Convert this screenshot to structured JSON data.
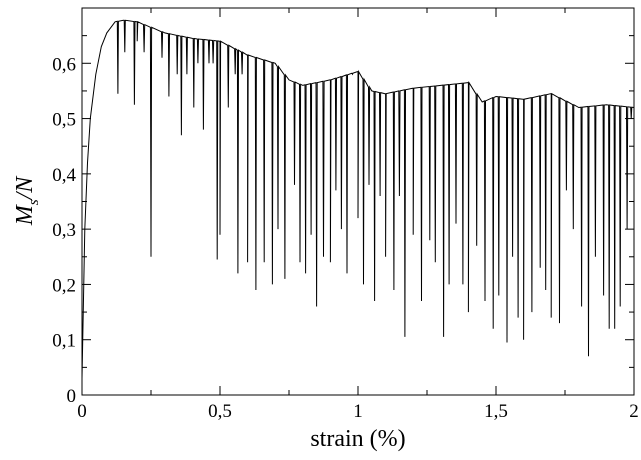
{
  "chart_data": {
    "type": "line",
    "title": "",
    "xlabel": "strain (%)",
    "ylabel": "M",
    "ylabel_subscript": "s",
    "ylabel_suffix": "/N",
    "xlim": [
      0,
      2
    ],
    "ylim": [
      0,
      0.7
    ],
    "grid": false,
    "legend": "none",
    "line_color": "#000000",
    "x_ticks": [
      {
        "value": 0,
        "label": "0"
      },
      {
        "value": 0.5,
        "label": "0,5"
      },
      {
        "value": 1,
        "label": "1"
      },
      {
        "value": 1.5,
        "label": "1,5"
      },
      {
        "value": 2,
        "label": "2"
      }
    ],
    "y_ticks": [
      {
        "value": 0,
        "label": "0"
      },
      {
        "value": 0.1,
        "label": "0,1"
      },
      {
        "value": 0.2,
        "label": "0,2"
      },
      {
        "value": 0.3,
        "label": "0,3"
      },
      {
        "value": 0.4,
        "label": "0,4"
      },
      {
        "value": 0.5,
        "label": "0,5"
      },
      {
        "value": 0.6,
        "label": "0,6"
      }
    ],
    "series": [
      {
        "baseline": [
          [
            0,
            0.03
          ],
          [
            0.01,
            0.3
          ],
          [
            0.02,
            0.42
          ],
          [
            0.03,
            0.5
          ],
          [
            0.05,
            0.58
          ],
          [
            0.07,
            0.63
          ],
          [
            0.09,
            0.655
          ],
          [
            0.12,
            0.675
          ],
          [
            0.15,
            0.678
          ],
          [
            0.2,
            0.675
          ],
          [
            0.3,
            0.655
          ],
          [
            0.4,
            0.645
          ],
          [
            0.5,
            0.64
          ],
          [
            0.6,
            0.615
          ],
          [
            0.7,
            0.6
          ],
          [
            0.75,
            0.57
          ],
          [
            0.8,
            0.56
          ],
          [
            0.9,
            0.57
          ],
          [
            1.0,
            0.585
          ],
          [
            1.05,
            0.55
          ],
          [
            1.1,
            0.545
          ],
          [
            1.2,
            0.555
          ],
          [
            1.3,
            0.56
          ],
          [
            1.4,
            0.565
          ],
          [
            1.45,
            0.53
          ],
          [
            1.5,
            0.54
          ],
          [
            1.6,
            0.535
          ],
          [
            1.7,
            0.545
          ],
          [
            1.8,
            0.52
          ],
          [
            1.9,
            0.525
          ],
          [
            2.0,
            0.52
          ]
        ],
        "drops": [
          [
            0.13,
            0.545
          ],
          [
            0.155,
            0.62
          ],
          [
            0.19,
            0.525
          ],
          [
            0.2,
            0.64
          ],
          [
            0.225,
            0.62
          ],
          [
            0.25,
            0.25
          ],
          [
            0.29,
            0.61
          ],
          [
            0.315,
            0.54
          ],
          [
            0.345,
            0.58
          ],
          [
            0.36,
            0.47
          ],
          [
            0.38,
            0.58
          ],
          [
            0.405,
            0.52
          ],
          [
            0.42,
            0.6
          ],
          [
            0.44,
            0.48
          ],
          [
            0.46,
            0.6
          ],
          [
            0.475,
            0.6
          ],
          [
            0.49,
            0.245
          ],
          [
            0.5,
            0.29
          ],
          [
            0.53,
            0.52
          ],
          [
            0.555,
            0.58
          ],
          [
            0.565,
            0.22
          ],
          [
            0.58,
            0.58
          ],
          [
            0.6,
            0.24
          ],
          [
            0.63,
            0.19
          ],
          [
            0.66,
            0.24
          ],
          [
            0.69,
            0.2
          ],
          [
            0.71,
            0.3
          ],
          [
            0.735,
            0.21
          ],
          [
            0.77,
            0.38
          ],
          [
            0.79,
            0.24
          ],
          [
            0.81,
            0.22
          ],
          [
            0.83,
            0.29
          ],
          [
            0.85,
            0.16
          ],
          [
            0.875,
            0.25
          ],
          [
            0.9,
            0.24
          ],
          [
            0.92,
            0.37
          ],
          [
            0.94,
            0.3
          ],
          [
            0.96,
            0.22
          ],
          [
            0.98,
            0.58
          ],
          [
            1.0,
            0.32
          ],
          [
            1.02,
            0.2
          ],
          [
            1.04,
            0.38
          ],
          [
            1.06,
            0.17
          ],
          [
            1.08,
            0.36
          ],
          [
            1.1,
            0.25
          ],
          [
            1.13,
            0.19
          ],
          [
            1.15,
            0.36
          ],
          [
            1.17,
            0.105
          ],
          [
            1.2,
            0.29
          ],
          [
            1.23,
            0.17
          ],
          [
            1.26,
            0.28
          ],
          [
            1.28,
            0.24
          ],
          [
            1.31,
            0.105
          ],
          [
            1.33,
            0.2
          ],
          [
            1.355,
            0.31
          ],
          [
            1.38,
            0.2
          ],
          [
            1.4,
            0.15
          ],
          [
            1.43,
            0.27
          ],
          [
            1.46,
            0.17
          ],
          [
            1.49,
            0.12
          ],
          [
            1.51,
            0.18
          ],
          [
            1.54,
            0.095
          ],
          [
            1.56,
            0.25
          ],
          [
            1.58,
            0.14
          ],
          [
            1.6,
            0.1
          ],
          [
            1.63,
            0.15
          ],
          [
            1.66,
            0.23
          ],
          [
            1.68,
            0.19
          ],
          [
            1.7,
            0.14
          ],
          [
            1.73,
            0.13
          ],
          [
            1.755,
            0.37
          ],
          [
            1.78,
            0.3
          ],
          [
            1.81,
            0.16
          ],
          [
            1.835,
            0.07
          ],
          [
            1.86,
            0.25
          ],
          [
            1.89,
            0.18
          ],
          [
            1.91,
            0.12
          ],
          [
            1.93,
            0.12
          ],
          [
            1.95,
            0.16
          ],
          [
            1.975,
            0.3
          ],
          [
            1.99,
            0.5
          ]
        ]
      }
    ]
  }
}
